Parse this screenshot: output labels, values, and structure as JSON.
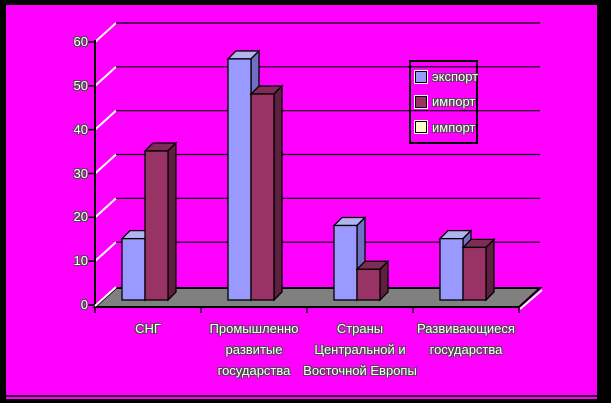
{
  "chart_data": {
    "type": "bar",
    "style": "3d-column",
    "title": "",
    "xlabel": "",
    "ylabel": "",
    "categories": [
      "СНГ",
      "Промышленно развитые государства",
      "Страны Центральной и Восточной Европы",
      "Развивающиеся государства"
    ],
    "category_lines": [
      [
        "СНГ"
      ],
      [
        "Промышленно",
        "развитые",
        "государства"
      ],
      [
        "Страны",
        "Центральной и",
        "Восточной Европы"
      ],
      [
        "Развивающиеся",
        "государства"
      ]
    ],
    "series": [
      {
        "name": "экспорт",
        "color": "#9999FF",
        "values": [
          14,
          55,
          17,
          14
        ]
      },
      {
        "name": "импорт",
        "color": "#993366",
        "values": [
          34,
          47,
          7,
          12
        ]
      },
      {
        "name": "импорт",
        "color": "#FFFFCC",
        "values": [
          0,
          0,
          0,
          0
        ]
      }
    ],
    "y_axis": {
      "min": 0,
      "max": 60,
      "step": 10,
      "tick_labels": [
        "0",
        "10",
        "20",
        "30",
        "40",
        "50",
        "60"
      ]
    },
    "grid": true,
    "legend": {
      "position": "top-right",
      "entries": [
        {
          "label": "экспорт",
          "color": "#9999FF"
        },
        {
          "label": "импорт",
          "color": "#993366"
        },
        {
          "label": "импорт",
          "color": "#FFFFCC"
        }
      ]
    },
    "colors": {
      "background": "#FF00FF",
      "floor": "#808080",
      "frame": "#000000",
      "text": "#FFFFFF",
      "gridline": "#000000",
      "wall_depth_line": "#FFFFFF"
    }
  }
}
